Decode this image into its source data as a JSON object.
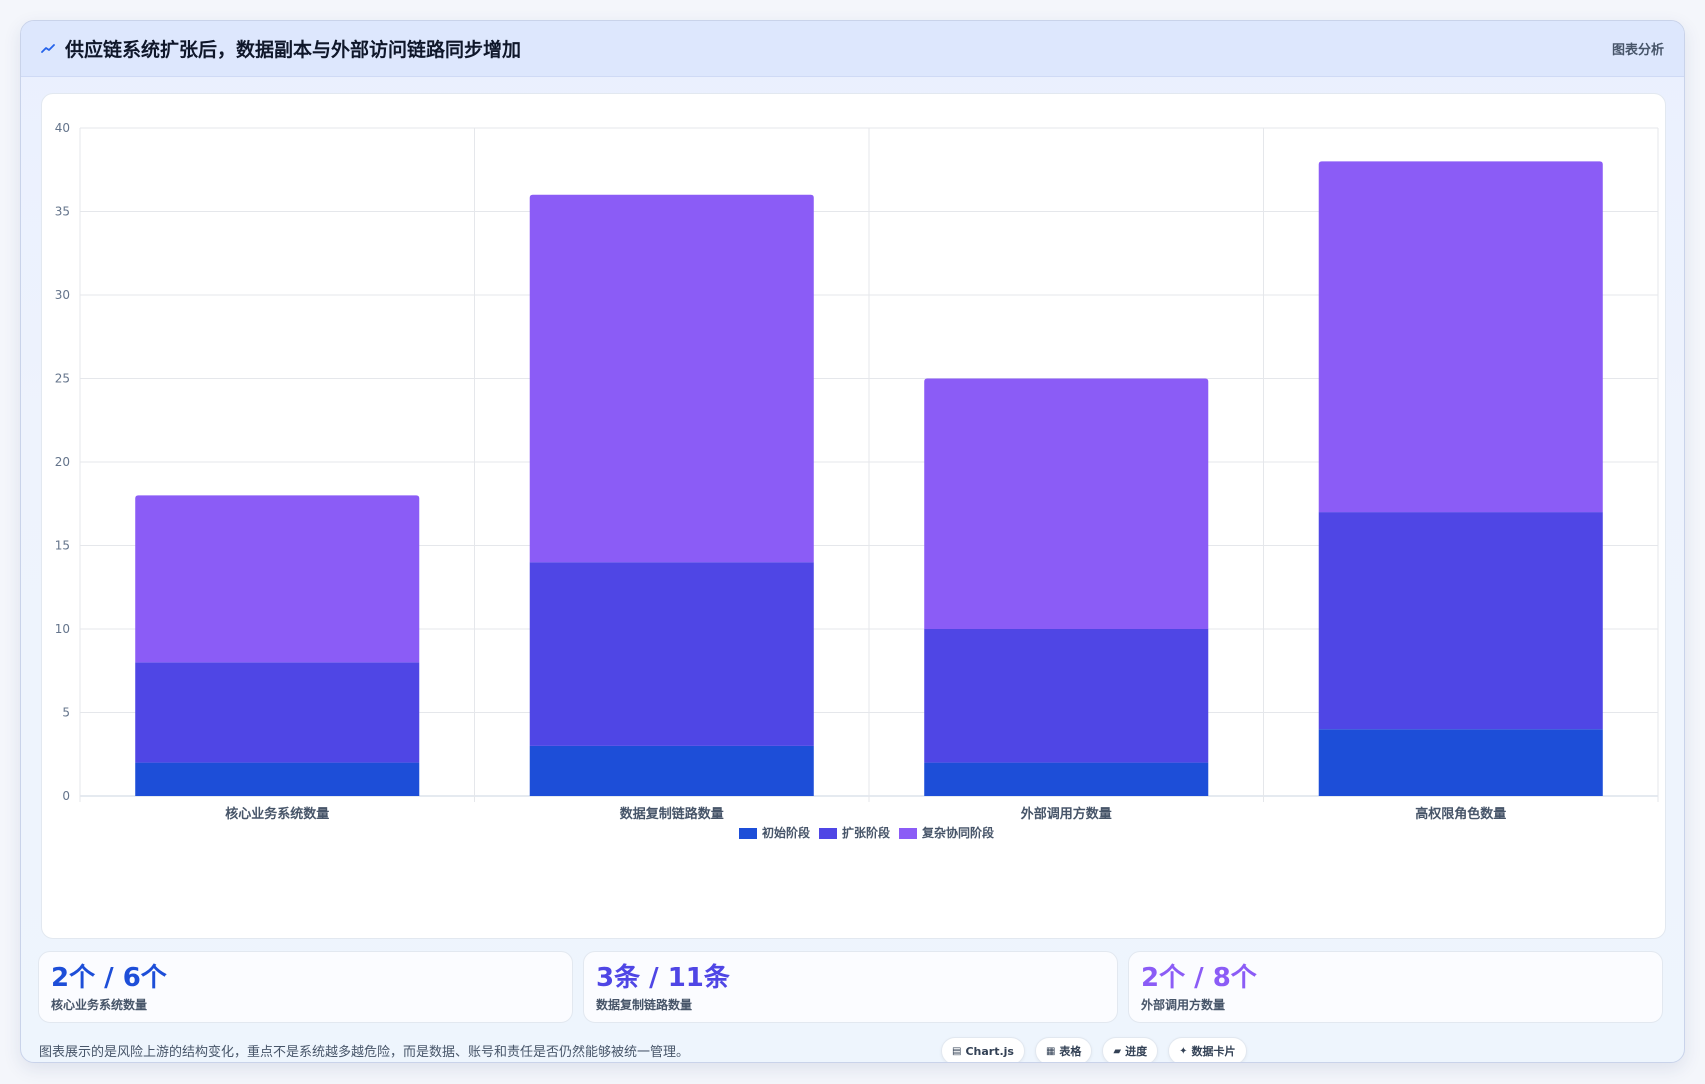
{
  "header": {
    "title": "供应链系统扩张后，数据副本与外部访问链路同步增加",
    "right_label": "图表分析",
    "icon": "trend-icon"
  },
  "chart_data": {
    "type": "bar",
    "stacked": true,
    "categories": [
      "核心业务系统数量",
      "数据复制链路数量",
      "外部调用方数量",
      "高权限角色数量"
    ],
    "series": [
      {
        "name": "初始阶段",
        "values": [
          2,
          3,
          2,
          4
        ],
        "color": "#1d4ed8"
      },
      {
        "name": "扩张阶段",
        "values": [
          6,
          11,
          8,
          13
        ],
        "color": "#4f46e5"
      },
      {
        "name": "复杂协同阶段",
        "values": [
          10,
          22,
          15,
          21
        ],
        "color": "#8b5cf6"
      }
    ],
    "ylim": [
      0,
      40
    ],
    "yticks": [
      0,
      5,
      10,
      15,
      20,
      25,
      30,
      35,
      40
    ],
    "grid": true,
    "legend": "bottom-center"
  },
  "stats": [
    {
      "value": "2个 / 6个",
      "label": "核心业务系统数量",
      "color": "#1d4ed8"
    },
    {
      "value": "3条 / 11条",
      "label": "数据复制链路数量",
      "color": "#4f46e5"
    },
    {
      "value": "2个 / 8个",
      "label": "外部调用方数量",
      "color": "#8b5cf6"
    }
  ],
  "footer": {
    "note": "图表展示的是风险上游的结构变化，重点不是系统越多越危险，而是数据、账号和责任是否仍然能够被统一管理。",
    "chips": [
      {
        "icon": "chart-icon",
        "glyph": "▤",
        "label": "Chart.js"
      },
      {
        "icon": "table-icon",
        "glyph": "▦",
        "label": "表格"
      },
      {
        "icon": "progress-icon",
        "glyph": "▰",
        "label": "进度"
      },
      {
        "icon": "card-icon",
        "glyph": "✦",
        "label": "数据卡片"
      }
    ]
  }
}
